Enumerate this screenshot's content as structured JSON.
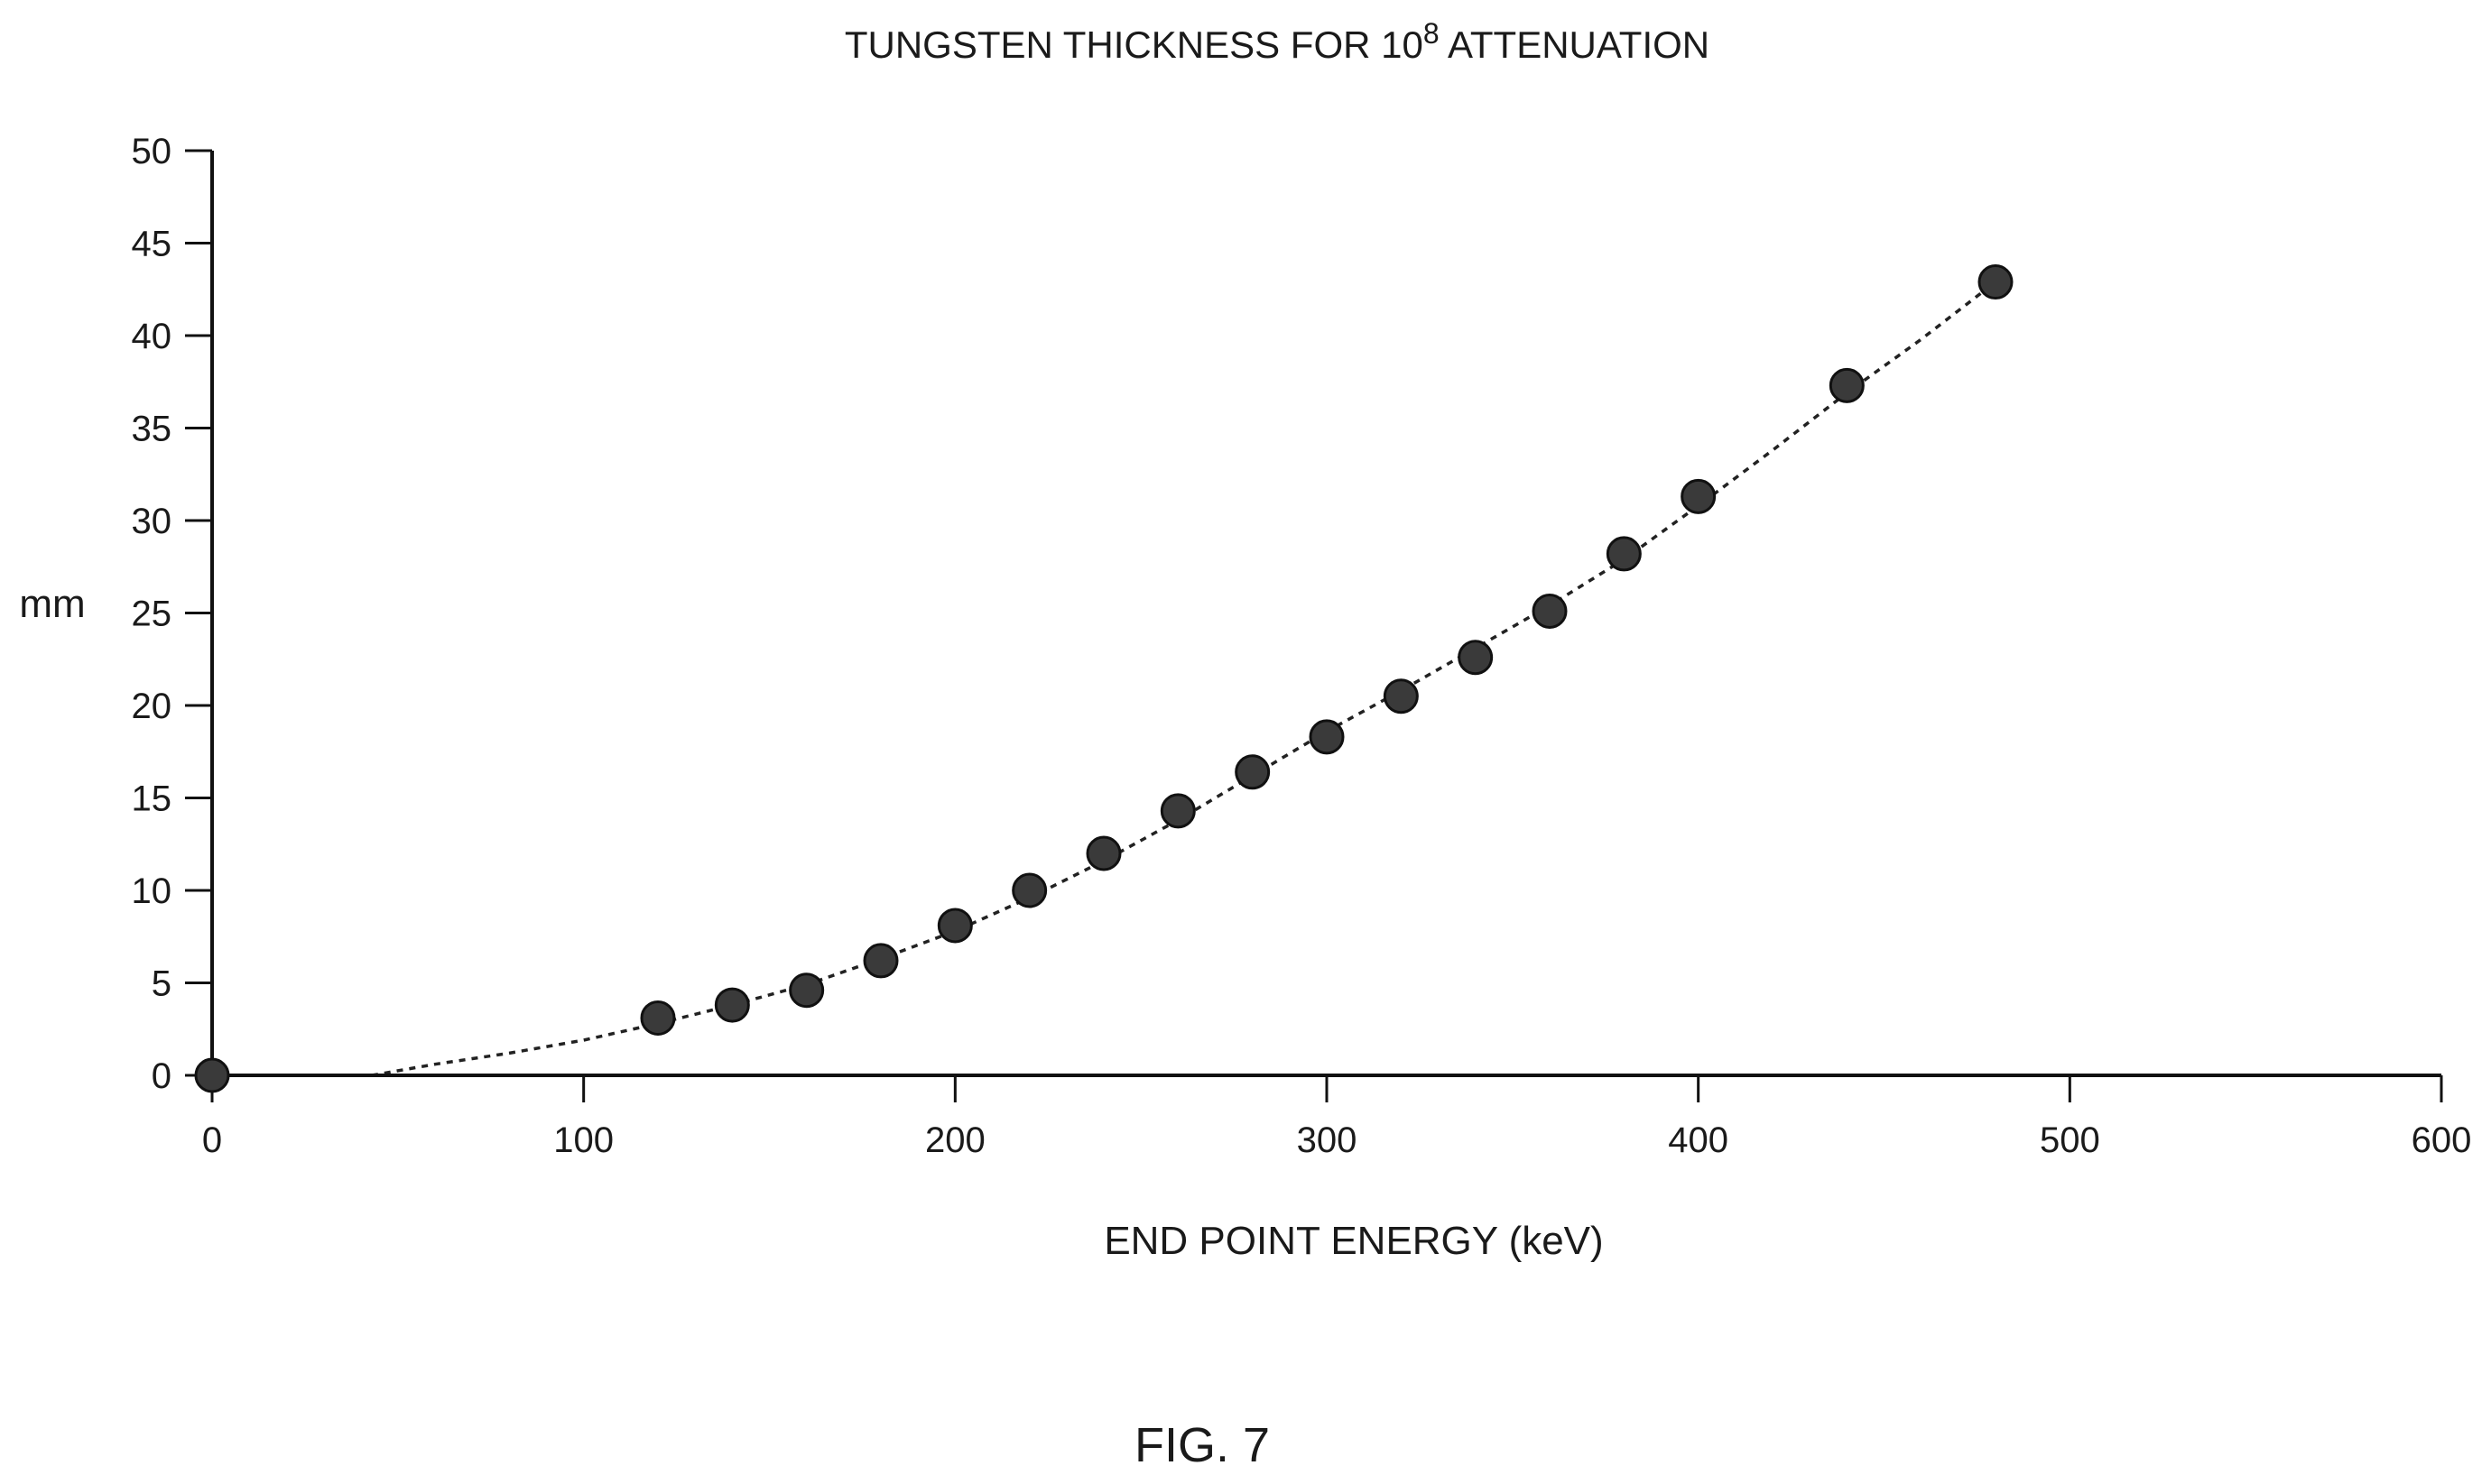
{
  "chart_data": {
    "type": "scatter",
    "title": {
      "prefix": "TUNGSTEN THICKNESS FOR 10",
      "superscript": "8",
      "suffix": " ATTENUATION"
    },
    "xlabel": "END POINT ENERGY (keV)",
    "ylabel": "mm",
    "xlim": [
      0,
      600
    ],
    "ylim": [
      0,
      50
    ],
    "x_ticks": [
      "0",
      "100",
      "200",
      "300",
      "400",
      "500",
      "600"
    ],
    "y_ticks": [
      "0",
      "5",
      "10",
      "15",
      "20",
      "25",
      "30",
      "35",
      "40",
      "45",
      "50"
    ],
    "grid": false,
    "legend": "none",
    "series": [
      {
        "kind": "points",
        "x": [
          0,
          120,
          140,
          160,
          180,
          200,
          220,
          240,
          260,
          280,
          300,
          320,
          340,
          360,
          380,
          400,
          440,
          480
        ],
        "y": [
          0,
          3.1,
          3.8,
          4.6,
          6.2,
          8.1,
          10.0,
          12.0,
          14.3,
          16.4,
          18.3,
          20.5,
          22.6,
          25.1,
          28.2,
          31.3,
          37.3,
          42.9
        ]
      },
      {
        "kind": "dashed trend curve",
        "x": [
          43,
          60,
          80,
          100,
          120,
          140,
          160,
          180,
          200,
          220,
          240,
          260,
          280,
          300,
          320,
          340,
          360,
          380,
          400,
          420,
          440,
          460,
          480
        ],
        "y": [
          0,
          0.6,
          1.2,
          1.9,
          2.8,
          3.8,
          4.9,
          6.3,
          7.8,
          9.6,
          11.6,
          13.8,
          16.2,
          18.6,
          20.8,
          23.1,
          25.4,
          27.9,
          30.8,
          33.8,
          36.9,
          39.8,
          42.9
        ]
      }
    ]
  },
  "caption": "FIG. 7"
}
